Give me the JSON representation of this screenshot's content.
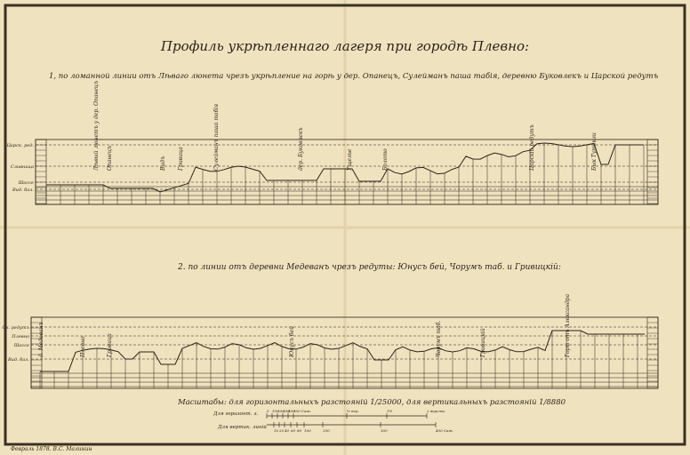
{
  "title": "Профиль укрѣпленнаго лагеря при городѣ Плевно:",
  "section1": {
    "caption": "1, по ломанной линии отъ Лѣваго люнета чрезъ укрѣпление на горѣ у дер. Опанецъ, Сулейманъ паша табія, деревню Буковлекъ и Царской редутъ",
    "left_labels": [
      "Царск. ред.",
      "Сливница",
      "Шоссе",
      "Вид. бал."
    ],
    "point_labels": [
      "Лѣвый люнетъ у дер. Опанецъ",
      "Опанецъ",
      "Видъ",
      "Гривица",
      "Сулейманъ паша табія",
      "дер. Буковлекъ",
      "Ущелье",
      "Болото",
      "Царскій редутъ",
      "Бык Тутекли"
    ]
  },
  "section2": {
    "caption": "2. по линии отъ деревни Медеванъ чрезъ редуты: Юнусъ бей, Чорумъ таб. и Гривицкій:",
    "left_labels": [
      "Сл. редутъ",
      "Плевно",
      "Шоссе",
      "Вид. бал."
    ],
    "point_labels": [
      "д. Медеванъ",
      "Плевно",
      "Гривица",
      "Юнусъ бей",
      "Чорумъ таб.",
      "Гривицкій",
      "Горы отъ Александра"
    ]
  },
  "scale": {
    "caption": "Масштабы: для горизонтальныхъ разстояній 1/25000, для вертикальныхъ разстояній 1/8880",
    "horizontal_label": "Для горизонт. л.",
    "horizontal_ticks": [
      "0",
      "100",
      "200",
      "300",
      "400",
      "500 Саж.",
      "½ вер.",
      "1½",
      "2 версты"
    ],
    "vertical_label": "Для вертик. линій",
    "vertical_ticks": [
      "10",
      "20",
      "40",
      "60",
      "80",
      "100",
      "200",
      "300",
      "400 Саж."
    ]
  },
  "signature": "Февраль 1878. В.С. Малинин",
  "colors": {
    "paper": "#efe2bf",
    "ink": "#2b2418"
  }
}
